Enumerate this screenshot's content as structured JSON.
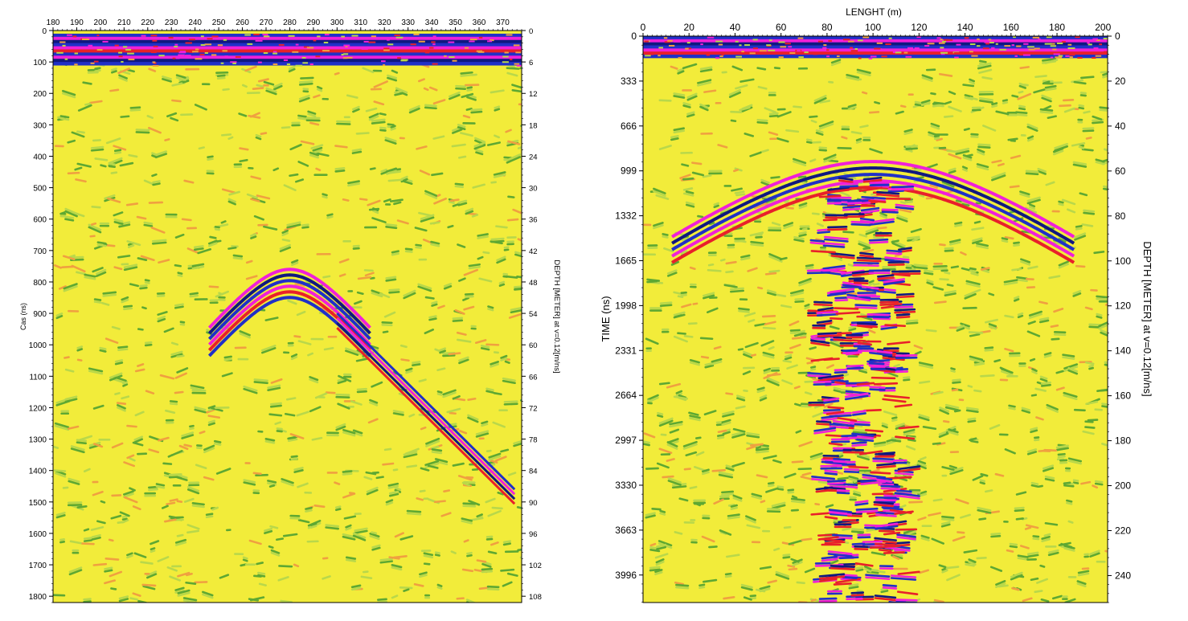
{
  "palette": {
    "background": "#f2ec3a",
    "light_green": "#b9d84a",
    "green": "#5ea832",
    "orange": "#f0a040",
    "red": "#e8202a",
    "magenta": "#f020d8",
    "blue": "#2030c8",
    "navy": "#101880"
  },
  "chart_data": [
    {
      "type": "heatmap",
      "title": "",
      "xlabel": "",
      "ylabel": "Cas (ns)",
      "y2label": "DEPTH [METER] at v=0.12[m/ns]",
      "xlim": [
        180,
        378
      ],
      "ylim": [
        0,
        1820
      ],
      "y2lim": [
        0,
        109.2
      ],
      "x_ticks": [
        "180",
        "190",
        "200",
        "210",
        "220",
        "230",
        "240",
        "250",
        "260",
        "270",
        "280",
        "290",
        "300",
        "310",
        "320",
        "330",
        "340",
        "350",
        "360",
        "370"
      ],
      "y_ticks": [
        "0",
        "100",
        "200",
        "300",
        "400",
        "500",
        "600",
        "700",
        "800",
        "900",
        "1000",
        "1100",
        "1200",
        "1300",
        "1400",
        "1500",
        "1600",
        "1700",
        "1800"
      ],
      "y2_ticks": [
        "0",
        "6",
        "12",
        "18",
        "24",
        "30",
        "36",
        "42",
        "48",
        "54",
        "60",
        "66",
        "72",
        "78",
        "84",
        "90",
        "96",
        "102",
        "108"
      ],
      "features": {
        "surface_band_ns": [
          10,
          110
        ],
        "hyperbola_apex": [
          280,
          760
        ],
        "dipping_reflector": [
          [
            300,
            900
          ],
          [
            375,
            1460
          ]
        ]
      }
    },
    {
      "type": "heatmap",
      "title": "",
      "xlabel": "LENGHT (m)",
      "ylabel": "TIME (ns)",
      "y2label": "DEPTH [METER] at v=0.12[m/ns]",
      "xlim": [
        0,
        202
      ],
      "ylim": [
        0,
        4200
      ],
      "y2lim": [
        0,
        252
      ],
      "x_ticks": [
        "0",
        "20",
        "40",
        "60",
        "80",
        "100",
        "120",
        "140",
        "160",
        "180",
        "200"
      ],
      "y_ticks": [
        "0",
        "333",
        "666",
        "999",
        "1332",
        "1665",
        "1998",
        "2331",
        "2664",
        "2997",
        "3330",
        "3663",
        "3996"
      ],
      "y2_ticks": [
        "0",
        "20",
        "40",
        "60",
        "80",
        "100",
        "120",
        "140",
        "160",
        "180",
        "200",
        "220",
        "240"
      ],
      "features": {
        "surface_band_ns": [
          0,
          160
        ],
        "hyperbola_apex": [
          100,
          930
        ],
        "vertical_zone_m": [
          75,
          115
        ]
      }
    }
  ]
}
